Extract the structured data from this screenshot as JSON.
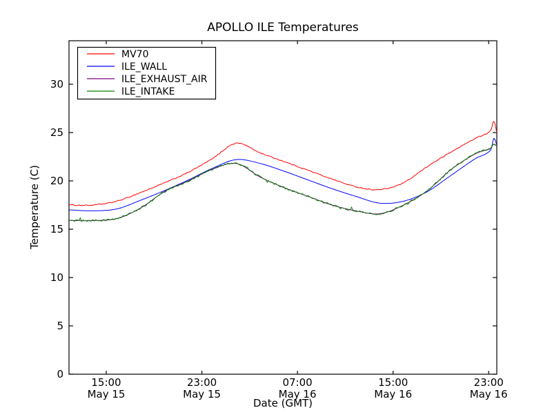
{
  "figure": {
    "background": "#ffffff",
    "axis_color": "#000000"
  },
  "chart_data": {
    "type": "line",
    "title": "APOLLO ILE Temperatures",
    "xlabel": "Date (GMT)",
    "ylabel": "Temperature (C)",
    "grid": false,
    "legend_position": "upper left",
    "ylim": [
      0,
      34.5
    ],
    "y_ticks": [
      0,
      5,
      10,
      15,
      20,
      25,
      30
    ],
    "xlim_hours": [
      0,
      35.8
    ],
    "x_ticks": [
      {
        "hour": 3.12,
        "time": "15:00",
        "date": "May 15"
      },
      {
        "hour": 11.12,
        "time": "23:00",
        "date": "May 15"
      },
      {
        "hour": 19.12,
        "time": "07:00",
        "date": "May 16"
      },
      {
        "hour": 27.12,
        "time": "15:00",
        "date": "May 16"
      },
      {
        "hour": 35.12,
        "time": "23:00",
        "date": "May 16"
      }
    ],
    "x_hours": [
      0,
      2,
      4,
      6,
      8,
      10,
      12,
      14,
      16,
      18,
      20,
      22,
      24,
      26,
      28,
      30,
      32,
      34,
      35.3,
      35.55,
      35.8
    ],
    "series": [
      {
        "name": "MV70",
        "color": "#ff0000",
        "noise_c": 0.05,
        "values": [
          17.5,
          17.5,
          17.9,
          18.8,
          19.8,
          20.9,
          22.3,
          23.9,
          22.9,
          22.0,
          21.1,
          20.2,
          19.4,
          19.1,
          19.8,
          21.5,
          23.0,
          24.4,
          25.2,
          26.2,
          25.0
        ]
      },
      {
        "name": "ILE_WALL",
        "color": "#0000ff",
        "noise_c": 0,
        "values": [
          17.0,
          16.9,
          17.1,
          18.0,
          19.0,
          20.1,
          21.3,
          22.2,
          21.8,
          21.0,
          20.1,
          19.2,
          18.4,
          17.7,
          17.9,
          18.9,
          20.6,
          22.3,
          23.2,
          24.4,
          23.7
        ]
      },
      {
        "name": "ILE_EXHAUST_AIR",
        "color": "#800080",
        "noise_c": 0,
        "note": "visually coincident with ILE_INTAKE and hidden beneath it",
        "values": [
          15.9,
          15.9,
          16.1,
          17.2,
          18.9,
          20.0,
          21.2,
          21.8,
          20.4,
          19.3,
          18.4,
          17.5,
          16.9,
          16.6,
          17.5,
          19.0,
          21.2,
          22.8,
          23.4,
          23.8,
          23.6
        ]
      },
      {
        "name": "ILE_INTAKE",
        "color": "#008000",
        "noise_c": 0.09,
        "values": [
          15.9,
          15.9,
          16.1,
          17.2,
          18.9,
          20.0,
          21.2,
          21.8,
          20.4,
          19.3,
          18.4,
          17.5,
          16.9,
          16.6,
          17.5,
          19.0,
          21.2,
          22.8,
          23.4,
          23.8,
          23.6
        ]
      }
    ]
  }
}
